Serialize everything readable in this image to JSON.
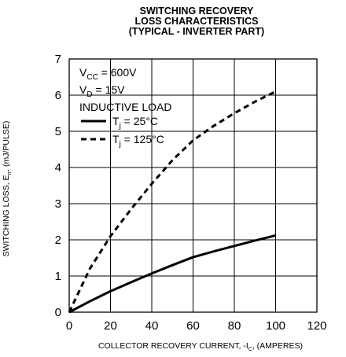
{
  "chart_data": {
    "type": "line",
    "title_lines": [
      "SWITCHING RECOVERY",
      "LOSS CHARACTERISTICS",
      "(TYPICAL - INVERTER PART)"
    ],
    "xlabel": {
      "main": "COLLECTOR RECOVERY CURRENT, -I",
      "sub": "C",
      "tail": ", (AMPERES)"
    },
    "ylabel": {
      "main": "SWITCHING LOSS, E",
      "sub": "rr",
      "tail": ", (mJ/PULSE)"
    },
    "xlim": [
      0,
      120
    ],
    "ylim": [
      0,
      7
    ],
    "xticks": [
      "0",
      "20",
      "40",
      "60",
      "80",
      "100",
      "120"
    ],
    "yticks": [
      "0",
      "1",
      "2",
      "3",
      "4",
      "5",
      "6",
      "7"
    ],
    "grid": true,
    "legend_position": "top-left",
    "conditions": [
      {
        "main": "V",
        "sub": "CC",
        "tail": " = 600V"
      },
      {
        "main": "V",
        "sub": "D",
        "tail": " = 15V"
      },
      {
        "main": "INDUCTIVE LOAD",
        "sub": "",
        "tail": ""
      }
    ],
    "series": [
      {
        "name": "T",
        "name_sub": "j",
        "name_tail": " = 25°C",
        "style": "solid",
        "x": [
          0,
          10,
          20,
          30,
          40,
          50,
          60,
          70,
          80,
          90,
          100
        ],
        "y": [
          0.0,
          0.3,
          0.58,
          0.83,
          1.07,
          1.3,
          1.52,
          1.68,
          1.83,
          1.98,
          2.12
        ]
      },
      {
        "name": "T",
        "name_sub": "j",
        "name_tail": " = 125°C",
        "style": "dashed",
        "x": [
          0,
          10,
          20,
          30,
          40,
          50,
          60,
          70,
          80,
          90,
          100
        ],
        "y": [
          0.0,
          1.2,
          2.1,
          2.85,
          3.55,
          4.2,
          4.75,
          5.15,
          5.5,
          5.82,
          6.1
        ]
      }
    ]
  }
}
